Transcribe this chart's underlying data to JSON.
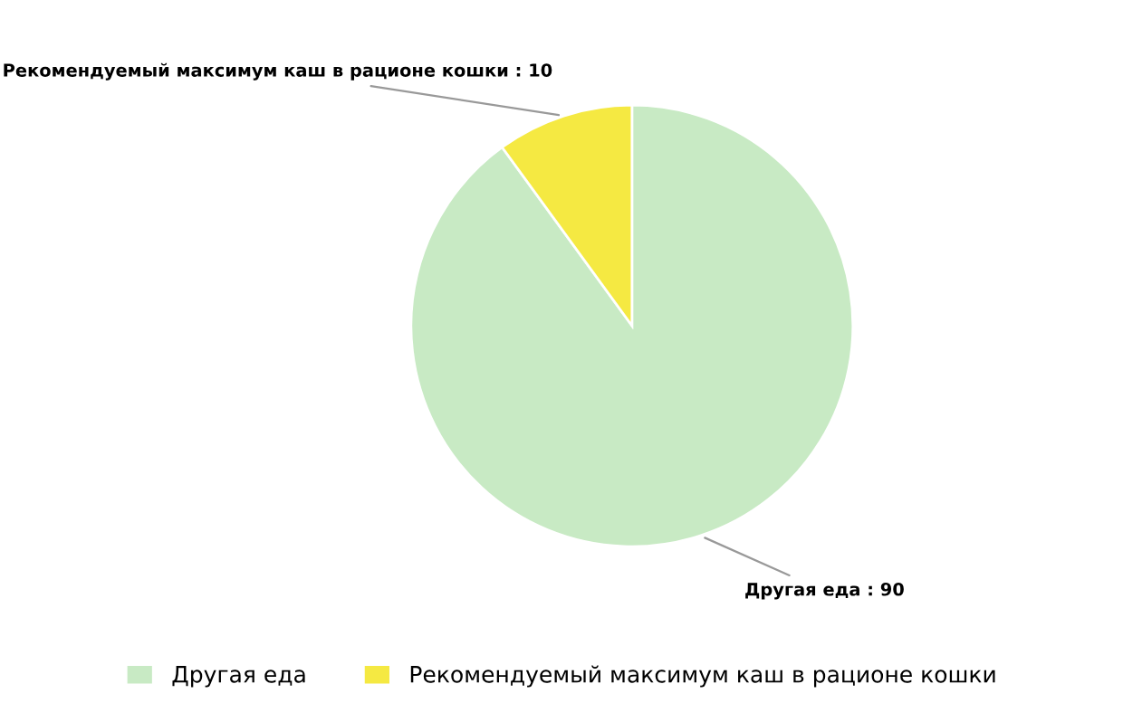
{
  "chart_data": {
    "type": "pie",
    "categories": [
      "Другая еда",
      "Рекомендуемый максимум каш в рационе кошки"
    ],
    "values": [
      90,
      10
    ],
    "colors": [
      "#c8eac4",
      "#f5e942"
    ],
    "value_labels": [
      "Другая еда : 90",
      "Рекомендуемый максимум каш в рационе кошки : 10"
    ],
    "legend": "bottom"
  }
}
